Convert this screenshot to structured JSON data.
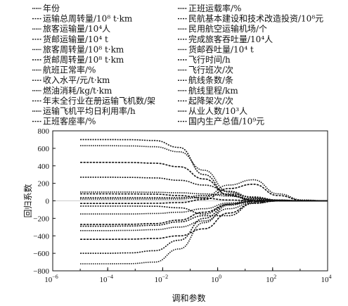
{
  "chart_data": {
    "type": "line",
    "xlabel": "调和参数",
    "ylabel": "回归系数",
    "x_scale": "log",
    "xlim": [
      1e-06,
      10000
    ],
    "ylim": [
      -800,
      800
    ],
    "x_ticks": [
      {
        "value": 1e-06,
        "base": "10",
        "exp": "−6"
      },
      {
        "value": 0.0001,
        "base": "10",
        "exp": "−4"
      },
      {
        "value": 0.01,
        "base": "10",
        "exp": "−2"
      },
      {
        "value": 1,
        "base": "10",
        "exp": "0"
      },
      {
        "value": 100,
        "base": "10",
        "exp": "2"
      },
      {
        "value": 10000,
        "base": "10",
        "exp": "4"
      }
    ],
    "y_ticks": [
      "800",
      "600",
      "400",
      "200",
      "0",
      "−200",
      "−400",
      "−600",
      "−800"
    ],
    "y_tick_values": [
      800,
      600,
      400,
      200,
      0,
      -200,
      -400,
      -600,
      -800
    ],
    "legend_left": [
      "年份",
      "运输总周转量/10⁸ t·km",
      "旅客运输量/10⁴人",
      "货邮运输量/10⁴ t",
      "旅客周转量/10⁸ t·km",
      "货邮周转量/10⁸ t·km",
      "航班正常率/%",
      "收入水平/元/t·km",
      "燃油消耗/kg/t·km",
      "年末全行业在册运输飞机数/架",
      "运输飞机平均日利用率/h",
      "正班客座率/%"
    ],
    "legend_right": [
      "正班运载率/%",
      "民航基本建设和技术改造投资/10⁸元",
      "民用航空运输机场/个",
      "完成旅客吞吐量/10⁴人",
      "货邮吞吐量/10⁴ t",
      "飞行时间/h",
      "飞行班次/次",
      "航线条数/条",
      "航线里程/km",
      "起降架次/次",
      "从业人数/10³人",
      "国内生产总值/10⁹元"
    ],
    "series": [
      {
        "values": [
          700,
          700,
          699,
          690,
          610,
          300,
          60,
          5,
          0,
          0,
          0
        ]
      },
      {
        "values": [
          630,
          630,
          628,
          618,
          560,
          350,
          100,
          12,
          0,
          0,
          0
        ]
      },
      {
        "values": [
          440,
          440,
          438,
          430,
          390,
          250,
          70,
          8,
          0,
          0,
          0
        ]
      },
      {
        "values": [
          270,
          270,
          268,
          262,
          235,
          180,
          110,
          35,
          5,
          0,
          0
        ]
      },
      {
        "values": [
          100,
          100,
          100,
          98,
          92,
          80,
          55,
          20,
          3,
          0,
          0
        ]
      },
      {
        "values": [
          80,
          80,
          79,
          76,
          60,
          30,
          10,
          2,
          0,
          0,
          0
        ]
      },
      {
        "values": [
          35,
          35,
          35,
          35,
          36,
          60,
          80,
          45,
          10,
          1,
          0
        ]
      },
      {
        "values": [
          20,
          20,
          20,
          20,
          22,
          40,
          180,
          240,
          80,
          10,
          0
        ]
      },
      {
        "values": [
          -30,
          -30,
          -30,
          -28,
          -20,
          15,
          140,
          190,
          60,
          5,
          0
        ]
      },
      {
        "values": [
          -60,
          -60,
          -60,
          -62,
          -80,
          -150,
          -40,
          30,
          8,
          0,
          0
        ]
      },
      {
        "values": [
          -150,
          -150,
          -150,
          -145,
          -130,
          -90,
          -25,
          -5,
          0,
          0,
          0
        ]
      },
      {
        "values": [
          -270,
          -270,
          -268,
          -260,
          -220,
          -130,
          -40,
          -8,
          0,
          0,
          0
        ]
      },
      {
        "values": [
          -290,
          -290,
          -288,
          -280,
          -240,
          -170,
          -170,
          -30,
          -2,
          0,
          0
        ]
      },
      {
        "values": [
          -340,
          -340,
          -338,
          -330,
          -300,
          -230,
          -90,
          -15,
          -1,
          0,
          0
        ]
      },
      {
        "values": [
          -440,
          -440,
          -438,
          -430,
          -400,
          -320,
          -140,
          -25,
          -2,
          0,
          0
        ]
      },
      {
        "values": [
          -600,
          -600,
          -595,
          -570,
          -450,
          -200,
          -40,
          -5,
          0,
          0,
          0
        ]
      },
      {
        "values": [
          -720,
          -720,
          -718,
          -700,
          -550,
          -250,
          -50,
          -6,
          0,
          0,
          0
        ]
      }
    ]
  }
}
